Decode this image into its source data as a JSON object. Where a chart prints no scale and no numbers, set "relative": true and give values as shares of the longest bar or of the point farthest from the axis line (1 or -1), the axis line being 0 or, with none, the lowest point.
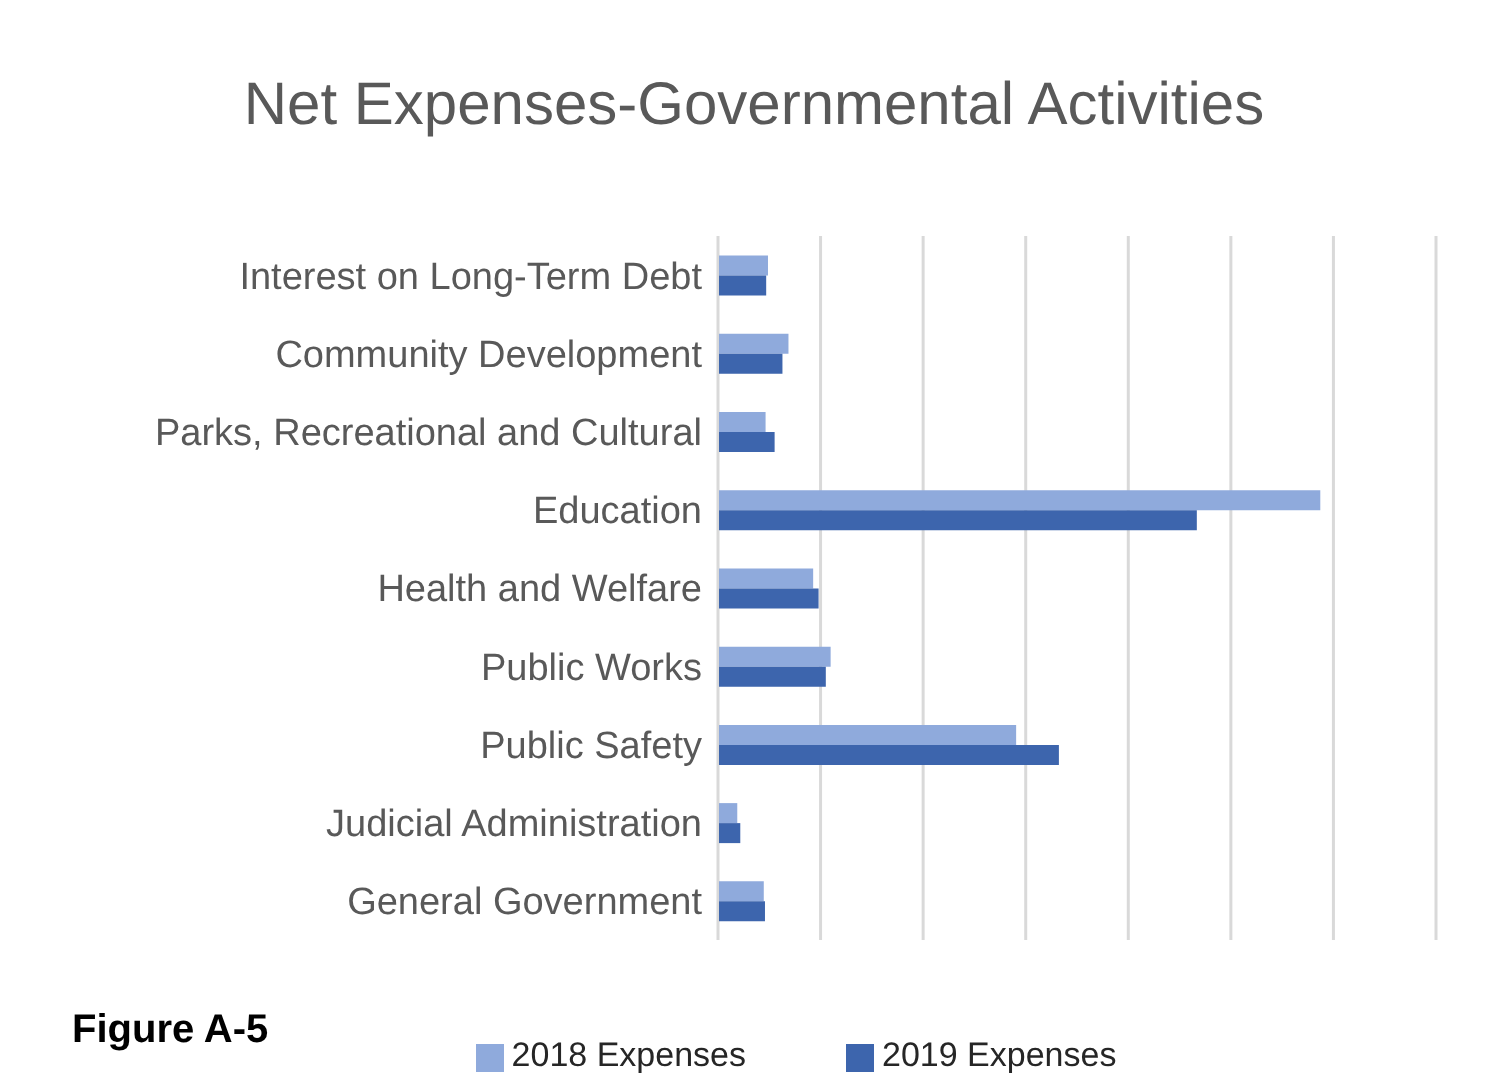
{
  "chart_data": {
    "type": "bar",
    "orientation": "horizontal",
    "relative": true,
    "title": "Net Expenses-Governmental Activities",
    "categories": [
      "Interest on Long-Term Debt",
      "Community Development",
      "Parks, Recreational and Cultural",
      "Education",
      "Health and Welfare",
      "Public Works",
      "Public Safety",
      "Judicial Administration",
      "General Government"
    ],
    "series": [
      {
        "name": "2018 Expenses",
        "color": "#8faadc",
        "values": [
          0.083,
          0.117,
          0.079,
          1,
          0.158,
          0.187,
          0.495,
          0.032,
          0.076
        ]
      },
      {
        "name": "2019 Expenses",
        "color": "#3d65ad",
        "values": [
          0.08,
          0.107,
          0.094,
          0.795,
          0.167,
          0.179,
          0.566,
          0.037,
          0.078
        ]
      }
    ],
    "grid": "x",
    "legend": "bottom",
    "annotations": [
      "Figure A-5"
    ]
  }
}
